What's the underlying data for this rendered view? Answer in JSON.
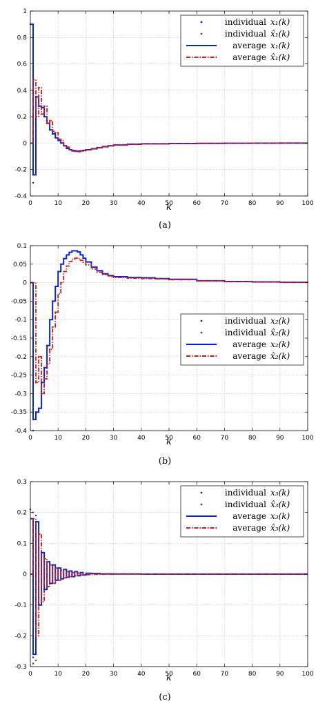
{
  "colors": {
    "blue": "#0a22d6",
    "red": "#d41818",
    "grid": "#bdbdbd",
    "axis": "#000000"
  },
  "chart_data": [
    {
      "type": "line",
      "caption": "(a)",
      "xlabel": "k",
      "ylabel": "",
      "xlim": [
        0,
        100
      ],
      "ylim": [
        -0.4,
        1
      ],
      "xticks": [
        0,
        10,
        20,
        30,
        40,
        50,
        60,
        70,
        80,
        90,
        100
      ],
      "yticks": [
        -0.4,
        -0.2,
        0,
        0.2,
        0.4,
        0.6,
        0.8,
        1
      ],
      "ytick_labels": [
        "-0.4",
        "-0.2",
        "0",
        "0.2",
        "0.4",
        "0.6",
        "0.8",
        "1"
      ],
      "grid": true,
      "legend_position": "top-right",
      "legend": [
        {
          "label": "individual",
          "math": "x₁(k)",
          "style": "dot",
          "color": "#0a22d6"
        },
        {
          "label": "individual",
          "math": "x̂₁(k)",
          "style": "dot",
          "color": "#d41818"
        },
        {
          "label": "average",
          "math": "x₁(k)",
          "style": "solid",
          "color": "#0a22d6"
        },
        {
          "label": "average",
          "math": "x̂₁(k)",
          "style": "dashdot",
          "color": "#d41818"
        }
      ],
      "series": [
        {
          "name": "average x₁(k)",
          "style": "solid-step",
          "color": "#0a22d6",
          "x": [
            0,
            1,
            2,
            3,
            4,
            5,
            6,
            7,
            8,
            9,
            10,
            11,
            12,
            13,
            14,
            15,
            16,
            17,
            18,
            19,
            20,
            22,
            24,
            26,
            28,
            30,
            35,
            40,
            50,
            60,
            70,
            80,
            90,
            100
          ],
          "y": [
            0.9,
            -0.24,
            0.35,
            0.28,
            0.27,
            0.2,
            0.15,
            0.1,
            0.07,
            0.04,
            0.02,
            0.0,
            -0.02,
            -0.04,
            -0.05,
            -0.055,
            -0.06,
            -0.06,
            -0.058,
            -0.055,
            -0.05,
            -0.042,
            -0.034,
            -0.026,
            -0.02,
            -0.014,
            -0.008,
            -0.005,
            -0.003,
            -0.002,
            -0.001,
            -0.0005,
            0,
            0
          ]
        },
        {
          "name": "average x̂₁(k)",
          "style": "dashdot-step",
          "color": "#d41818",
          "x": [
            0,
            1,
            2,
            3,
            4,
            5,
            6,
            7,
            8,
            9,
            10,
            11,
            12,
            13,
            14,
            15,
            16,
            17,
            18,
            19,
            20,
            22,
            24,
            26,
            28,
            30,
            35,
            40,
            50,
            60,
            70,
            80,
            90,
            100
          ],
          "y": [
            0,
            0.48,
            0.2,
            0.42,
            0.22,
            0.28,
            0.15,
            0.17,
            0.09,
            0.08,
            0.03,
            0.02,
            -0.02,
            -0.03,
            -0.05,
            -0.06,
            -0.065,
            -0.065,
            -0.062,
            -0.058,
            -0.052,
            -0.044,
            -0.036,
            -0.028,
            -0.021,
            -0.015,
            -0.009,
            -0.005,
            -0.003,
            -0.002,
            -0.001,
            -0.0005,
            0,
            0
          ]
        },
        {
          "name": "individual x₁(k)",
          "style": "dot",
          "color": "#0a22d6",
          "x": [
            0,
            1,
            1,
            2,
            3,
            4,
            5,
            6,
            7,
            8
          ],
          "y": [
            0.9,
            -0.3,
            -0.24,
            0.35,
            0.28,
            0.27,
            0.2,
            0.15,
            0.1,
            0.07
          ]
        },
        {
          "name": "individual x̂₁(k)",
          "style": "dot",
          "color": "#d41818",
          "x": [
            1,
            2,
            3,
            4,
            5,
            6,
            7,
            8,
            9
          ],
          "y": [
            0.48,
            0.2,
            0.42,
            0.22,
            0.28,
            0.15,
            0.17,
            0.09,
            0.08
          ]
        }
      ]
    },
    {
      "type": "line",
      "caption": "(b)",
      "xlabel": "k",
      "ylabel": "",
      "xlim": [
        0,
        100
      ],
      "ylim": [
        -0.4,
        0.1
      ],
      "xticks": [
        0,
        10,
        20,
        30,
        40,
        50,
        60,
        70,
        80,
        90,
        100
      ],
      "yticks": [
        -0.4,
        -0.35,
        -0.3,
        -0.25,
        -0.2,
        -0.15,
        -0.1,
        -0.05,
        0,
        0.05,
        0.1
      ],
      "ytick_labels": [
        "-0.4",
        "-0.35",
        "-0.3",
        "-0.25",
        "-0.2",
        "-0.15",
        "-0.1",
        "-0.05",
        "0",
        "0.05",
        "0.1"
      ],
      "grid": true,
      "legend_position": "middle-right",
      "legend": [
        {
          "label": "individual",
          "math": "x₂(k)",
          "style": "dot",
          "color": "#0a22d6"
        },
        {
          "label": "individual",
          "math": "x̂₂(k)",
          "style": "dot",
          "color": "#d41818"
        },
        {
          "label": "average",
          "math": "x₂(k)",
          "style": "solid",
          "color": "#0a22d6"
        },
        {
          "label": "average",
          "math": "x̂₂(k)",
          "style": "dashdot",
          "color": "#d41818"
        }
      ],
      "series": [
        {
          "name": "average x₂(k)",
          "style": "solid-step",
          "color": "#0a22d6",
          "x": [
            0,
            1,
            2,
            3,
            4,
            5,
            6,
            7,
            8,
            9,
            10,
            11,
            12,
            13,
            14,
            15,
            16,
            17,
            18,
            19,
            20,
            22,
            24,
            26,
            28,
            30,
            35,
            40,
            45,
            50,
            60,
            70,
            80,
            90,
            100
          ],
          "y": [
            0,
            -0.37,
            -0.35,
            -0.34,
            -0.27,
            -0.23,
            -0.17,
            -0.1,
            -0.05,
            -0.01,
            0.03,
            0.05,
            0.065,
            0.075,
            0.082,
            0.086,
            0.086,
            0.083,
            0.075,
            0.066,
            0.056,
            0.042,
            0.032,
            0.024,
            0.019,
            0.016,
            0.014,
            0.013,
            0.011,
            0.009,
            0.005,
            0.003,
            0.002,
            0.001,
            0.0
          ]
        },
        {
          "name": "average x̂₂(k)",
          "style": "dashdot-step",
          "color": "#d41818",
          "x": [
            0,
            1,
            2,
            3,
            4,
            5,
            6,
            7,
            8,
            9,
            10,
            11,
            12,
            13,
            14,
            15,
            16,
            17,
            18,
            19,
            20,
            22,
            24,
            26,
            28,
            30,
            35,
            40,
            45,
            50,
            60,
            70,
            80,
            90,
            100
          ],
          "y": [
            0,
            0,
            -0.27,
            -0.2,
            -0.3,
            -0.26,
            -0.22,
            -0.18,
            -0.12,
            -0.08,
            -0.03,
            0.0,
            0.03,
            0.045,
            0.057,
            0.063,
            0.066,
            0.065,
            0.06,
            0.055,
            0.048,
            0.037,
            0.028,
            0.022,
            0.017,
            0.014,
            0.012,
            0.011,
            0.01,
            0.008,
            0.005,
            0.003,
            0.002,
            0.001,
            0.0
          ]
        },
        {
          "name": "individual x₂(k)",
          "style": "dot",
          "color": "#0a22d6",
          "x": [
            1,
            2,
            3,
            4,
            5,
            6,
            7,
            8
          ],
          "y": [
            -0.4,
            -0.35,
            -0.34,
            -0.27,
            -0.23,
            -0.17,
            -0.1,
            -0.05
          ]
        },
        {
          "name": "individual x̂₂(k)",
          "style": "dot",
          "color": "#d41818",
          "x": [
            1,
            2,
            3,
            4,
            5,
            6,
            7,
            8,
            9
          ],
          "y": [
            -0.05,
            -0.27,
            -0.2,
            -0.3,
            -0.26,
            -0.22,
            -0.18,
            -0.12,
            -0.08
          ]
        }
      ]
    },
    {
      "type": "line",
      "caption": "(c)",
      "xlabel": "k",
      "ylabel": "",
      "xlim": [
        0,
        100
      ],
      "ylim": [
        -0.3,
        0.3
      ],
      "xticks": [
        0,
        10,
        20,
        30,
        40,
        50,
        60,
        70,
        80,
        90,
        100
      ],
      "yticks": [
        -0.3,
        -0.2,
        -0.1,
        0,
        0.1,
        0.2,
        0.3
      ],
      "ytick_labels": [
        "-0.3",
        "-0.2",
        "-0.1",
        "0",
        "0.1",
        "0.2",
        "0.3"
      ],
      "grid": true,
      "legend_position": "top-right",
      "legend": [
        {
          "label": "individual",
          "math": "x₃(k)",
          "style": "dot",
          "color": "#0a22d6"
        },
        {
          "label": "individual",
          "math": "x̂₃(k)",
          "style": "dot",
          "color": "#d41818"
        },
        {
          "label": "average",
          "math": "x₃(k)",
          "style": "solid",
          "color": "#0a22d6"
        },
        {
          "label": "average",
          "math": "x̂₃(k)",
          "style": "dashdot",
          "color": "#d41818"
        }
      ],
      "series": [
        {
          "name": "average x₃(k)",
          "style": "solid-step",
          "color": "#0a22d6",
          "x": [
            0,
            1,
            2,
            3,
            4,
            5,
            6,
            7,
            8,
            9,
            10,
            11,
            12,
            13,
            14,
            15,
            16,
            17,
            18,
            19,
            20,
            22,
            25,
            30,
            40,
            50,
            60,
            70,
            80,
            90,
            100
          ],
          "y": [
            0.18,
            -0.26,
            0.17,
            -0.1,
            0.07,
            -0.05,
            0.04,
            -0.03,
            0.03,
            -0.02,
            0.02,
            -0.015,
            0.015,
            -0.01,
            0.01,
            -0.008,
            0.008,
            -0.005,
            0.005,
            -0.003,
            0.003,
            0.002,
            0.001,
            0.0005,
            0,
            0,
            0,
            0,
            0,
            0,
            0
          ]
        },
        {
          "name": "average x̂₃(k)",
          "style": "dashdot-step",
          "color": "#d41818",
          "x": [
            0,
            1,
            2,
            3,
            4,
            5,
            6,
            7,
            8,
            9,
            10,
            11,
            12,
            13,
            14,
            15,
            16,
            17,
            18,
            19,
            20,
            22,
            25,
            30,
            40,
            50,
            60,
            70,
            80,
            90,
            100
          ],
          "y": [
            0,
            0.18,
            -0.2,
            0.13,
            -0.09,
            0.05,
            -0.04,
            0.03,
            -0.03,
            0.02,
            -0.02,
            0.012,
            -0.012,
            0.008,
            -0.008,
            0.005,
            -0.005,
            0.003,
            -0.003,
            0.002,
            -0.002,
            -0.001,
            -0.0005,
            0,
            0,
            0,
            0,
            0,
            0,
            0,
            0
          ]
        },
        {
          "name": "individual x₃(k)",
          "style": "dot",
          "color": "#0a22d6",
          "x": [
            0,
            1,
            1,
            2,
            2,
            3,
            4,
            5
          ],
          "y": [
            0.21,
            -0.27,
            -0.29,
            0.19,
            0.17,
            -0.1,
            0.07,
            -0.05
          ]
        },
        {
          "name": "individual x̂₃(k)",
          "style": "dot",
          "color": "#d41818",
          "x": [
            1,
            2,
            2,
            3,
            4,
            5,
            6
          ],
          "y": [
            0.2,
            -0.28,
            -0.2,
            0.13,
            -0.09,
            0.05,
            -0.04
          ]
        }
      ]
    }
  ]
}
